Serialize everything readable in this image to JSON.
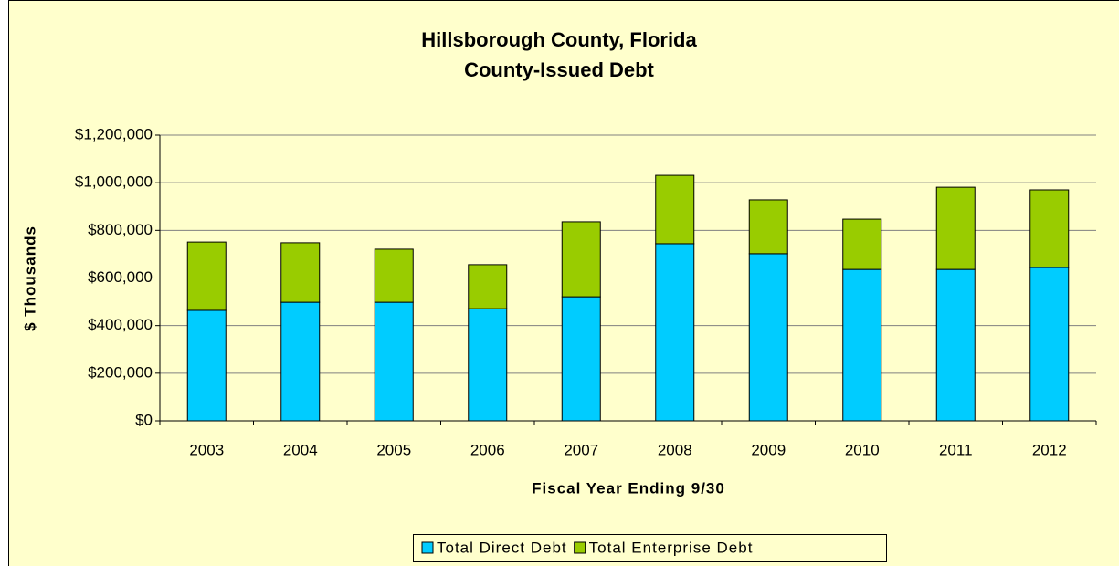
{
  "chart_data": {
    "type": "bar",
    "stacked": true,
    "title": "Hillsborough County, Florida",
    "subtitle": "County-Issued Debt",
    "x_label": "Fiscal Year Ending 9/30",
    "y_label": "$ Thousands",
    "categories": [
      "2003",
      "2004",
      "2005",
      "2006",
      "2007",
      "2008",
      "2009",
      "2010",
      "2011",
      "2012"
    ],
    "series": [
      {
        "name": "Total Direct Debt",
        "color": "#00ccff",
        "values": [
          464000,
          498000,
          498000,
          471000,
          521000,
          744000,
          702000,
          636000,
          636000,
          644000
        ]
      },
      {
        "name": "Total Enterprise Debt",
        "color": "#99cc00",
        "values": [
          287000,
          250000,
          223000,
          185000,
          315000,
          287000,
          226000,
          211000,
          345000,
          326000
        ]
      }
    ],
    "ylim": [
      0,
      1200000
    ],
    "yticks": [
      {
        "value": 0,
        "label": "$0"
      },
      {
        "value": 200000,
        "label": "$200,000"
      },
      {
        "value": 400000,
        "label": "$400,000"
      },
      {
        "value": 600000,
        "label": "$600,000"
      },
      {
        "value": 800000,
        "label": "$800,000"
      },
      {
        "value": 1000000,
        "label": "$1,000,000"
      },
      {
        "value": 1200000,
        "label": "$1,200,000"
      }
    ],
    "grid": true,
    "legend": "bottom"
  }
}
